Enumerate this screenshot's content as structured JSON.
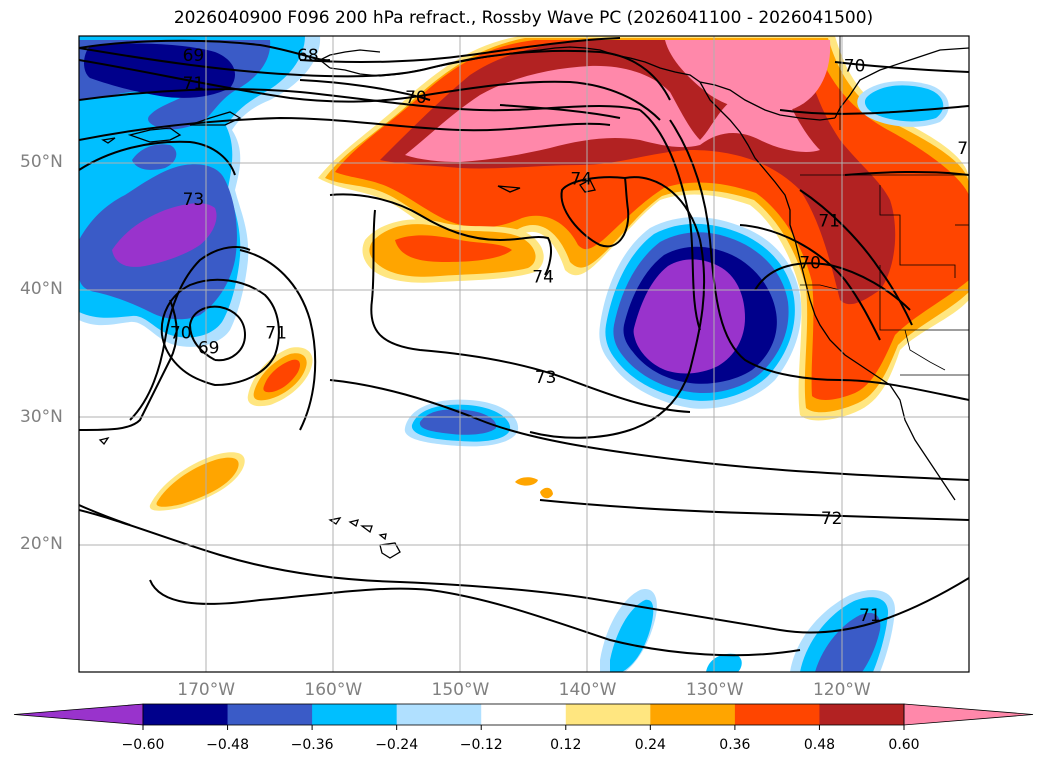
{
  "title": "2026040900 F096 200 hPa refract., Rossby Wave PC (2026041100 - 2026041500)",
  "map": {
    "lon_range": [
      -180,
      -110
    ],
    "lat_range": [
      10,
      60
    ],
    "lat_ticks": [
      {
        "lat": 50,
        "label": "50°N"
      },
      {
        "lat": 40,
        "label": "40°N"
      },
      {
        "lat": 30,
        "label": "30°N"
      },
      {
        "lat": 20,
        "label": "20°N"
      }
    ],
    "lon_ticks": [
      {
        "lon": -170,
        "label": "170°W"
      },
      {
        "lon": -160,
        "label": "160°W"
      },
      {
        "lon": -150,
        "label": "150°W"
      },
      {
        "lon": -140,
        "label": "140°W"
      },
      {
        "lon": -130,
        "label": "130°W"
      },
      {
        "lon": -120,
        "label": "120°W"
      }
    ],
    "contour_labels": [
      {
        "text": "69",
        "lon": -171,
        "lat": 58.5
      },
      {
        "text": "68",
        "lon": -162,
        "lat": 58.5
      },
      {
        "text": "71",
        "lon": -171,
        "lat": 56.3
      },
      {
        "text": "70",
        "lon": -153.5,
        "lat": 55.2
      },
      {
        "text": "70",
        "lon": -119,
        "lat": 57.7
      },
      {
        "text": "7",
        "lon": -110.5,
        "lat": 51.2
      },
      {
        "text": "74",
        "lon": -140.5,
        "lat": 48.8
      },
      {
        "text": "73",
        "lon": -171,
        "lat": 47.2
      },
      {
        "text": "71",
        "lon": -121,
        "lat": 45.5
      },
      {
        "text": "70",
        "lon": -122.5,
        "lat": 42.2
      },
      {
        "text": "74",
        "lon": -143.5,
        "lat": 41.1
      },
      {
        "text": "70",
        "lon": -172,
        "lat": 36.7
      },
      {
        "text": "71",
        "lon": -164.5,
        "lat": 36.7
      },
      {
        "text": "69",
        "lon": -169.8,
        "lat": 35.5
      },
      {
        "text": "73",
        "lon": -143.3,
        "lat": 33.2
      },
      {
        "text": "72",
        "lon": -120.8,
        "lat": 22.1
      },
      {
        "text": "71",
        "lon": -117.8,
        "lat": 14.5
      }
    ]
  },
  "colorbar": {
    "bounds": [
      -0.72,
      -0.6,
      -0.48,
      -0.36,
      -0.24,
      -0.12,
      0.12,
      0.24,
      0.36,
      0.48,
      0.6,
      0.72
    ],
    "colors": [
      "#9933cc",
      "#00008b",
      "#3a5bc7",
      "#00bfff",
      "#b0e0ff",
      "#ffffff",
      "#ffe680",
      "#ffa500",
      "#ff4500",
      "#b22222",
      "#ff88aa"
    ],
    "under_color": "#9933cc",
    "over_color": "#ff88aa",
    "tick_labels": [
      "−0.60",
      "−0.48",
      "−0.36",
      "−0.24",
      "−0.12",
      "0.12",
      "0.24",
      "0.36",
      "0.48",
      "0.60"
    ]
  }
}
